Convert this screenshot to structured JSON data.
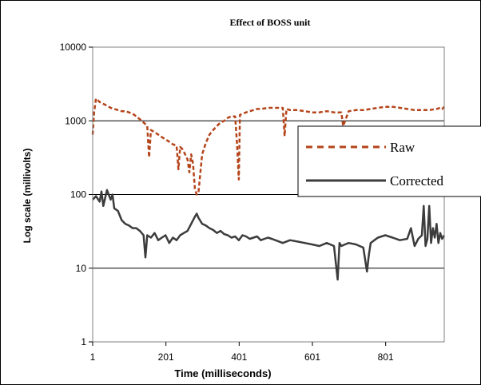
{
  "chart_data": {
    "type": "line",
    "title": "Effect of BOSS unit",
    "xlabel": "Time (milliseconds)",
    "ylabel": "Log scale (millivolts)",
    "yscale": "log",
    "xlim": [
      1,
      961
    ],
    "ylim": [
      1,
      10000
    ],
    "xticks": [
      1,
      201,
      401,
      601,
      801
    ],
    "xtick_labels": [
      "1",
      "201",
      "401",
      "601",
      "801"
    ],
    "yticks": [
      1,
      10,
      100,
      1000,
      10000
    ],
    "ytick_labels": [
      "1",
      "10",
      "100",
      "1000",
      "10000"
    ],
    "grid": "horizontal",
    "legend_position": "right",
    "series": [
      {
        "name": "Raw",
        "color": "#b5441a",
        "style": "dashed",
        "x": [
          1,
          5,
          10,
          15,
          20,
          30,
          40,
          50,
          60,
          70,
          80,
          90,
          100,
          110,
          120,
          130,
          140,
          150,
          155,
          160,
          170,
          180,
          190,
          200,
          210,
          220,
          230,
          235,
          240,
          245,
          250,
          260,
          265,
          270,
          275,
          280,
          285,
          290,
          295,
          300,
          310,
          320,
          330,
          340,
          350,
          360,
          370,
          380,
          390,
          395,
          400,
          403,
          410,
          420,
          430,
          440,
          450,
          460,
          480,
          500,
          520,
          525,
          530,
          540,
          560,
          580,
          600,
          620,
          640,
          660,
          680,
          685,
          700,
          720,
          740,
          760,
          780,
          800,
          820,
          840,
          860,
          880,
          900,
          920,
          940,
          950,
          955,
          961
        ],
        "y": [
          650,
          1300,
          2000,
          1900,
          1800,
          1700,
          1600,
          1500,
          1450,
          1400,
          1350,
          1350,
          1300,
          1250,
          1150,
          1050,
          950,
          850,
          320,
          750,
          700,
          650,
          600,
          560,
          520,
          480,
          460,
          220,
          440,
          420,
          380,
          300,
          200,
          350,
          260,
          120,
          100,
          110,
          200,
          350,
          500,
          650,
          750,
          850,
          950,
          1000,
          1100,
          1150,
          1150,
          500,
          160,
          1200,
          1250,
          1300,
          1350,
          1400,
          1450,
          1450,
          1500,
          1500,
          1500,
          620,
          1450,
          1400,
          1400,
          1350,
          1300,
          1300,
          1350,
          1300,
          1300,
          850,
          1350,
          1400,
          1400,
          1450,
          1500,
          1550,
          1550,
          1500,
          1450,
          1400,
          1400,
          1400,
          1450,
          1500,
          1450,
          1550
        ]
      },
      {
        "name": "Corrected",
        "color": "#3c3c3c",
        "style": "solid",
        "x": [
          1,
          10,
          20,
          25,
          30,
          40,
          50,
          55,
          60,
          70,
          80,
          90,
          100,
          110,
          120,
          130,
          140,
          145,
          150,
          160,
          170,
          180,
          190,
          200,
          210,
          220,
          230,
          240,
          250,
          260,
          270,
          280,
          285,
          290,
          300,
          310,
          320,
          330,
          340,
          350,
          360,
          370,
          380,
          390,
          400,
          410,
          420,
          430,
          440,
          450,
          460,
          470,
          480,
          490,
          500,
          520,
          540,
          560,
          580,
          600,
          620,
          640,
          660,
          670,
          675,
          680,
          690,
          700,
          720,
          740,
          750,
          755,
          760,
          770,
          780,
          800,
          820,
          840,
          860,
          870,
          880,
          890,
          900,
          905,
          910,
          915,
          920,
          925,
          930,
          935,
          940,
          945,
          950,
          955,
          961
        ],
        "y": [
          85,
          95,
          80,
          110,
          70,
          115,
          85,
          100,
          65,
          60,
          45,
          40,
          38,
          35,
          35,
          32,
          28,
          14,
          28,
          26,
          30,
          24,
          26,
          28,
          22,
          26,
          24,
          28,
          30,
          32,
          40,
          50,
          55,
          48,
          40,
          38,
          35,
          33,
          30,
          32,
          29,
          28,
          26,
          27,
          24,
          28,
          27,
          25,
          26,
          27,
          24,
          25,
          26,
          25,
          24,
          22,
          24,
          23,
          22,
          21,
          20,
          22,
          20,
          7,
          22,
          20,
          21,
          22,
          21,
          19,
          9,
          15,
          22,
          24,
          26,
          28,
          26,
          24,
          25,
          35,
          20,
          25,
          28,
          70,
          20,
          25,
          70,
          22,
          35,
          26,
          40,
          22,
          30,
          25,
          28
        ]
      }
    ]
  }
}
